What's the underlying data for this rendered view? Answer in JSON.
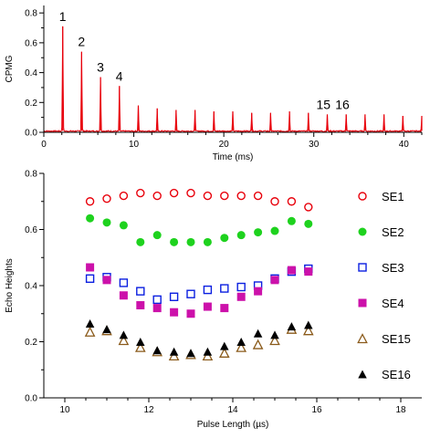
{
  "colors": {
    "trace": "#e8000b",
    "axis": "#000000",
    "SE1": "#e8000b",
    "SE2": "#1ed21e",
    "SE3": "#0b1fe0",
    "SE4": "#cc11aa",
    "SE15": "#8a5a1a",
    "SE16": "#000000"
  },
  "chart_data": [
    {
      "type": "line",
      "ylabel": "CPMG",
      "xlabel": "Time (ms)",
      "xlim": [
        0,
        42
      ],
      "ylim": [
        0,
        0.85
      ],
      "x_ticks": [
        "0",
        "10",
        "20",
        "30",
        "40"
      ],
      "y_ticks": [
        "0.0",
        "0.2",
        "0.4",
        "0.6",
        "0.8"
      ],
      "peaks": {
        "times_ms": [
          2.1,
          4.2,
          6.3,
          8.4,
          10.5,
          12.6,
          14.7,
          16.8,
          18.9,
          21.0,
          23.1,
          25.2,
          27.3,
          29.4,
          31.5,
          33.6,
          35.7,
          37.8,
          39.9,
          42.0
        ],
        "heights": [
          0.71,
          0.54,
          0.37,
          0.31,
          0.18,
          0.16,
          0.15,
          0.15,
          0.14,
          0.14,
          0.13,
          0.13,
          0.14,
          0.13,
          0.12,
          0.12,
          0.12,
          0.12,
          0.11,
          0.11
        ]
      },
      "annotations": [
        {
          "text": "1",
          "x": 2.1,
          "y": 0.71
        },
        {
          "text": "2",
          "x": 4.2,
          "y": 0.54
        },
        {
          "text": "3",
          "x": 6.3,
          "y": 0.37
        },
        {
          "text": "4",
          "x": 8.4,
          "y": 0.31
        },
        {
          "text": "15",
          "x": 31.5,
          "y": 0.12
        },
        {
          "text": "16",
          "x": 33.6,
          "y": 0.12
        }
      ],
      "grid": false
    },
    {
      "type": "scatter",
      "xlabel": "Pulse Length (µs)",
      "ylabel": "Echo Heights",
      "xlim": [
        9.5,
        18.5
      ],
      "ylim": [
        0,
        0.8
      ],
      "x_ticks": [
        "10",
        "12",
        "14",
        "16",
        "18"
      ],
      "y_ticks": [
        "0.0",
        "0.2",
        "0.4",
        "0.6",
        "0.8"
      ],
      "x": [
        10.6,
        11.0,
        11.4,
        11.8,
        12.2,
        12.6,
        13.0,
        13.4,
        13.8,
        14.2,
        14.6,
        15.0,
        15.4,
        15.8
      ],
      "legend_position": "right",
      "grid": false,
      "series": [
        {
          "name": "SE1",
          "marker": "circle-open",
          "values": [
            0.7,
            0.71,
            0.72,
            0.73,
            0.72,
            0.73,
            0.73,
            0.72,
            0.72,
            0.72,
            0.72,
            0.7,
            0.7,
            0.68
          ]
        },
        {
          "name": "SE2",
          "marker": "circle-filled",
          "values": [
            0.64,
            0.625,
            0.615,
            0.555,
            0.58,
            0.555,
            0.555,
            0.555,
            0.57,
            0.58,
            0.59,
            0.595,
            0.63,
            0.62
          ]
        },
        {
          "name": "SE3",
          "marker": "square-open",
          "values": [
            0.425,
            0.43,
            0.41,
            0.38,
            0.35,
            0.36,
            0.37,
            0.385,
            0.39,
            0.395,
            0.4,
            0.425,
            0.45,
            0.46
          ]
        },
        {
          "name": "SE4",
          "marker": "square-filled",
          "values": [
            0.465,
            0.42,
            0.365,
            0.33,
            0.32,
            0.305,
            0.3,
            0.325,
            0.32,
            0.36,
            0.38,
            0.42,
            0.455,
            0.45
          ]
        },
        {
          "name": "SE15",
          "marker": "triangle-open",
          "values": [
            0.235,
            0.24,
            0.205,
            0.18,
            0.165,
            0.15,
            0.155,
            0.15,
            0.16,
            0.18,
            0.19,
            0.205,
            0.245,
            0.24
          ]
        },
        {
          "name": "SE16",
          "marker": "triangle-filled",
          "values": [
            0.265,
            0.245,
            0.225,
            0.2,
            0.17,
            0.165,
            0.16,
            0.165,
            0.185,
            0.2,
            0.23,
            0.225,
            0.255,
            0.26
          ]
        }
      ]
    }
  ]
}
